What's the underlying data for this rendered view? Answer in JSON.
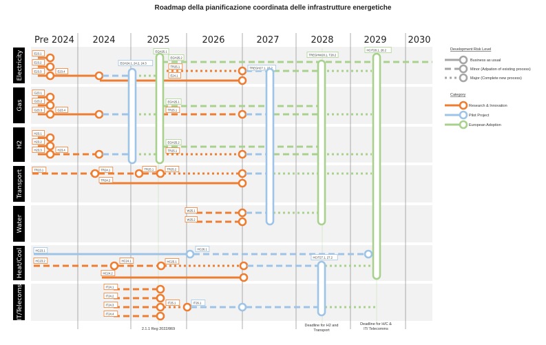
{
  "title": "Roadmap della pianificazione coordinata delle infrastrutture energetiche",
  "colors": {
    "research": "#ED7D31",
    "pilot": "#9DC3E6",
    "european": "#A9D18E",
    "legend_gray": "#A6A6A6",
    "row_bg": "#F2F2F2",
    "row_label_bg": "#000000"
  },
  "years": [
    "Pre 2024",
    "2024",
    "2025",
    "2026",
    "2027",
    "2028",
    "2029",
    "2030"
  ],
  "rows": [
    "Electricity",
    "Gas",
    "H2",
    "Transport",
    "Water",
    "Heat/Cool",
    "IT/Telecoms"
  ],
  "legend": {
    "risk_title": "Development Risk Level",
    "risk": [
      {
        "style": "solid",
        "label": "Business as usual"
      },
      {
        "style": "dashed",
        "label": "Minor (Adpation of existing process)"
      },
      {
        "style": "dotted",
        "label": "Major (Complete new process)"
      }
    ],
    "category_title": "Category",
    "category": [
      {
        "key": "research",
        "label": "Research & Innovation"
      },
      {
        "key": "pilot",
        "label": "Pilot Project"
      },
      {
        "key": "european",
        "label": "European Adoption"
      }
    ]
  },
  "milestones": {
    "research": [
      "E23.1",
      "E23.2",
      "E23.3",
      "E23.4",
      "E24.1",
      "TR25.1",
      "G23.1",
      "G23.2",
      "G23.3",
      "G23.4",
      "H23.1",
      "H23.2",
      "H23.3",
      "H23.4",
      "TR23.1",
      "TR24.1",
      "TR24.2",
      "TR25.1",
      "TR25.2",
      "W25.1",
      "W25.2",
      "HC23.2",
      "HC24.1",
      "HC24.2",
      "HC25.1",
      "IT24.1",
      "IT24.2",
      "IT24.3",
      "IT24.4",
      "IT25.1"
    ],
    "pilot": [
      "EGH24.1, 24.2, 24.3",
      "TREGH27.1, 27.2",
      "HC23.1",
      "HC26.1",
      "HCIT27.1, 27.2",
      "IT26.1"
    ],
    "european": [
      "EGH25.1",
      "EGH25.2",
      "TREGHW28.1, T28.2",
      "HCIT28.1, 28.2"
    ]
  },
  "notes": {
    "reg": "2.1.1 Reg 2022/869",
    "deadline_2028": [
      "Deadline for H2 and",
      "Transport"
    ],
    "deadline_2029": [
      "Deadline for H/C &",
      "IT/ Telecomms"
    ]
  }
}
